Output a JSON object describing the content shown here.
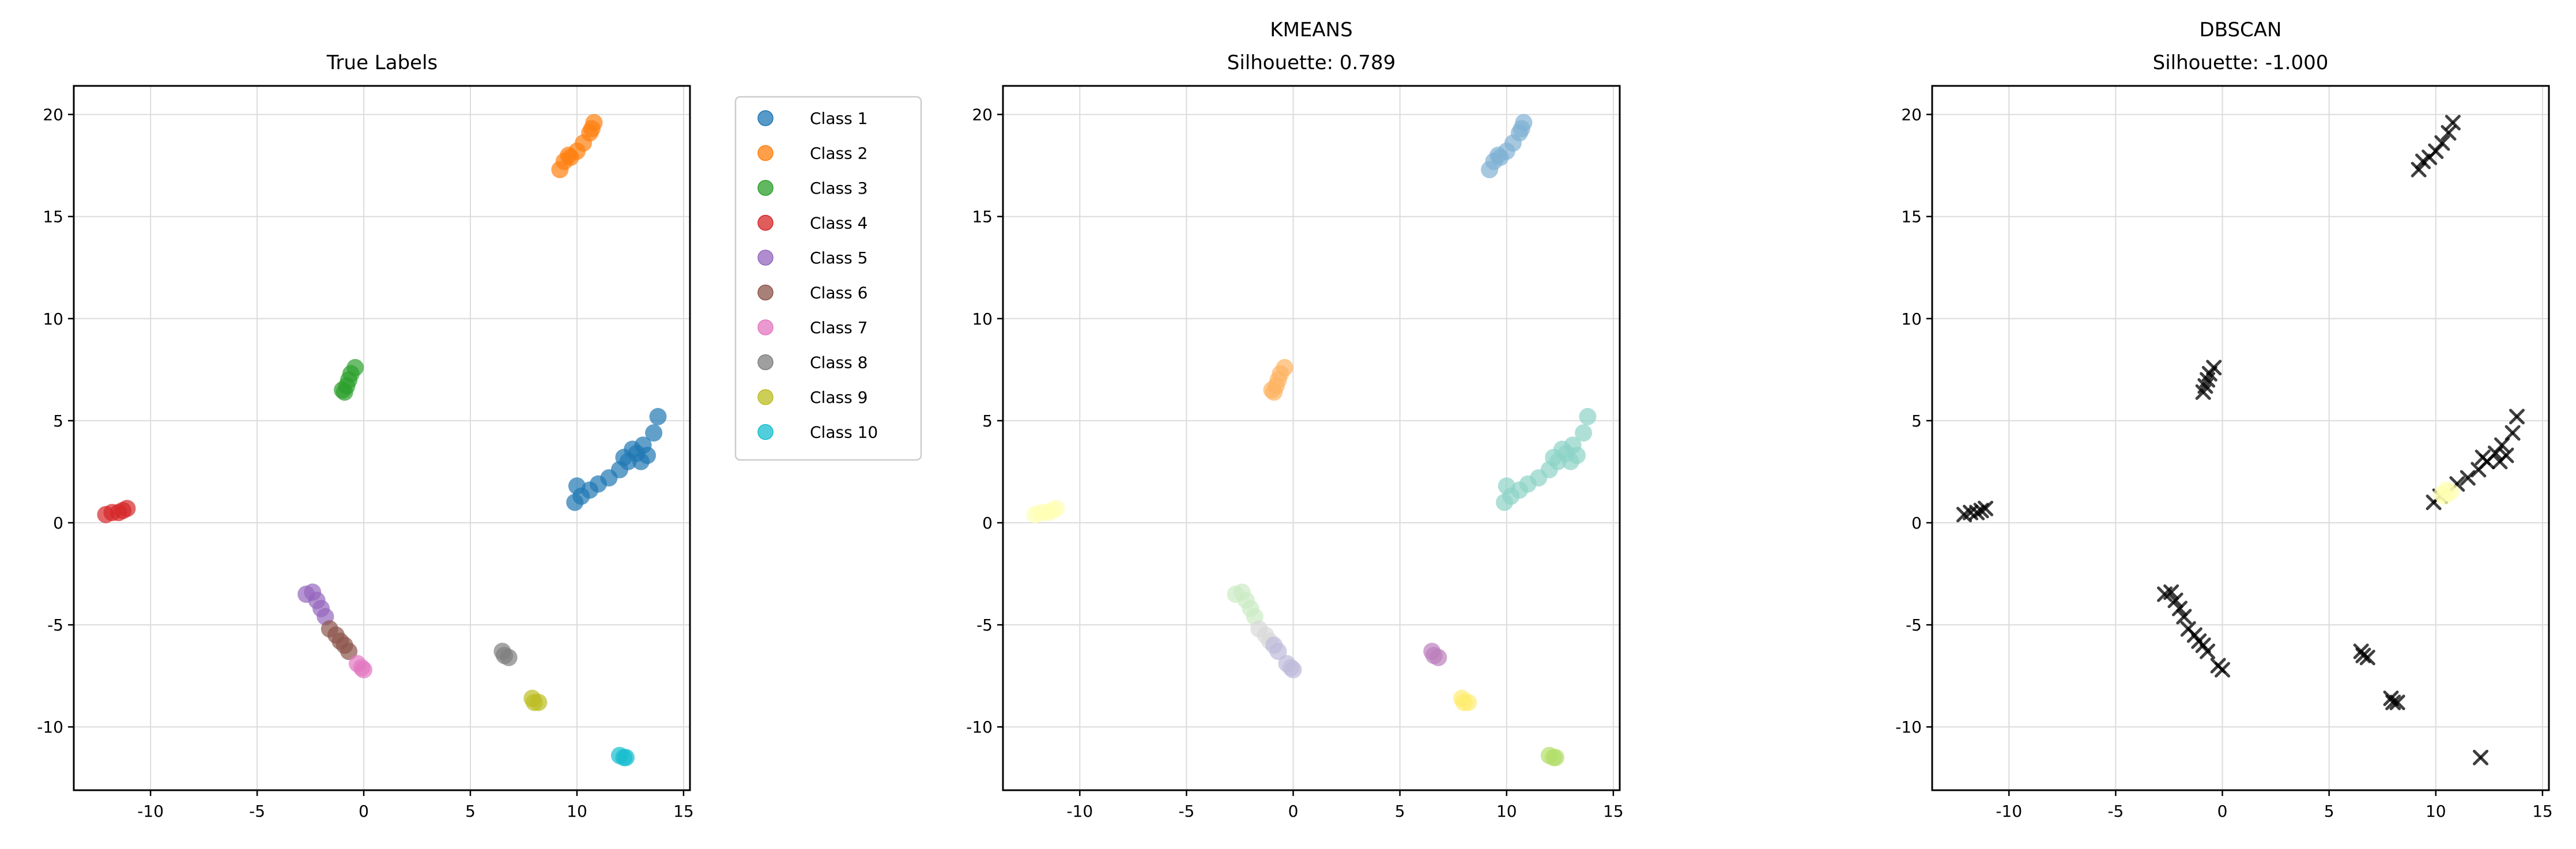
{
  "chart_data": [
    {
      "type": "scatter",
      "title": "True Labels",
      "subtitle": "",
      "xlabel": "",
      "ylabel": "",
      "xlim": [
        -13.6,
        15.3
      ],
      "ylim": [
        -13.1,
        21.4
      ],
      "xticks": [
        -10,
        -5,
        0,
        5,
        10,
        15
      ],
      "yticks": [
        -10,
        -5,
        0,
        5,
        10,
        15,
        20
      ],
      "xtick_labels": [
        "-10",
        "-5",
        "0",
        "5",
        "10",
        "15"
      ],
      "ytick_labels": [
        "-10",
        "-5",
        "0",
        "5",
        "10",
        "15",
        "20"
      ],
      "grid": true,
      "legend": {
        "placement": "outside-right",
        "marker": "circle"
      },
      "series": [
        {
          "name": "Class 1",
          "color": "#1f77b4",
          "points": [
            [
              9.9,
              1.0
            ],
            [
              10.2,
              1.3
            ],
            [
              10.6,
              1.6
            ],
            [
              11.0,
              1.9
            ],
            [
              11.5,
              2.2
            ],
            [
              12.0,
              2.6
            ],
            [
              12.4,
              3.0
            ],
            [
              12.8,
              3.4
            ],
            [
              13.1,
              3.8
            ],
            [
              13.3,
              3.3
            ],
            [
              13.6,
              4.4
            ],
            [
              13.8,
              5.2
            ],
            [
              12.2,
              3.2
            ],
            [
              10.0,
              1.8
            ],
            [
              13.0,
              3.0
            ],
            [
              12.6,
              3.6
            ]
          ]
        },
        {
          "name": "Class 2",
          "color": "#ff7f0e",
          "points": [
            [
              9.2,
              17.3
            ],
            [
              9.4,
              17.7
            ],
            [
              9.7,
              17.9
            ],
            [
              10.0,
              18.2
            ],
            [
              10.3,
              18.6
            ],
            [
              10.6,
              19.1
            ],
            [
              10.8,
              19.6
            ],
            [
              10.7,
              19.3
            ],
            [
              9.6,
              18.0
            ]
          ]
        },
        {
          "name": "Class 3",
          "color": "#2ca02c",
          "points": [
            [
              -0.9,
              6.4
            ],
            [
              -0.8,
              6.7
            ],
            [
              -0.7,
              7.0
            ],
            [
              -0.6,
              7.3
            ],
            [
              -0.4,
              7.6
            ],
            [
              -1.0,
              6.5
            ]
          ]
        },
        {
          "name": "Class 4",
          "color": "#d62728",
          "points": [
            [
              -12.1,
              0.4
            ],
            [
              -11.8,
              0.5
            ],
            [
              -11.5,
              0.5
            ],
            [
              -11.3,
              0.6
            ],
            [
              -11.1,
              0.7
            ]
          ]
        },
        {
          "name": "Class 5",
          "color": "#9467bd",
          "points": [
            [
              -2.7,
              -3.5
            ],
            [
              -2.4,
              -3.4
            ],
            [
              -2.2,
              -3.8
            ],
            [
              -2.0,
              -4.2
            ],
            [
              -1.8,
              -4.6
            ]
          ]
        },
        {
          "name": "Class 6",
          "color": "#8c564b",
          "points": [
            [
              -1.6,
              -5.2
            ],
            [
              -1.3,
              -5.5
            ],
            [
              -1.1,
              -5.8
            ],
            [
              -0.9,
              -6.0
            ],
            [
              -0.7,
              -6.3
            ]
          ]
        },
        {
          "name": "Class 7",
          "color": "#e377c2",
          "points": [
            [
              -0.3,
              -6.9
            ],
            [
              -0.1,
              -7.1
            ],
            [
              0.0,
              -7.2
            ]
          ]
        },
        {
          "name": "Class 8",
          "color": "#7f7f7f",
          "points": [
            [
              6.5,
              -6.3
            ],
            [
              6.6,
              -6.5
            ],
            [
              6.8,
              -6.6
            ]
          ]
        },
        {
          "name": "Class 9",
          "color": "#bcbd22",
          "points": [
            [
              7.9,
              -8.6
            ],
            [
              8.0,
              -8.8
            ],
            [
              8.2,
              -8.8
            ]
          ]
        },
        {
          "name": "Class 10",
          "color": "#17becf",
          "points": [
            [
              12.0,
              -11.4
            ],
            [
              12.2,
              -11.5
            ],
            [
              12.3,
              -11.5
            ]
          ]
        }
      ]
    },
    {
      "type": "scatter",
      "title": "KMEANS",
      "subtitle": "Silhouette: 0.789",
      "xlabel": "",
      "ylabel": "",
      "xlim": [
        -13.6,
        15.3
      ],
      "ylim": [
        -13.1,
        21.4
      ],
      "xticks": [
        -10,
        -5,
        0,
        5,
        10,
        15
      ],
      "yticks": [
        -10,
        -5,
        0,
        5,
        10,
        15,
        20
      ],
      "xtick_labels": [
        "-10",
        "-5",
        "0",
        "5",
        "10",
        "15"
      ],
      "ytick_labels": [
        "-10",
        "-5",
        "0",
        "5",
        "10",
        "15",
        "20"
      ],
      "grid": true,
      "legend": null,
      "series": [
        {
          "color": "#8dd3c7",
          "points": [
            [
              9.9,
              1.0
            ],
            [
              10.2,
              1.3
            ],
            [
              10.6,
              1.6
            ],
            [
              11.0,
              1.9
            ],
            [
              11.5,
              2.2
            ],
            [
              12.0,
              2.6
            ],
            [
              12.4,
              3.0
            ],
            [
              12.8,
              3.4
            ],
            [
              13.1,
              3.8
            ],
            [
              13.3,
              3.3
            ],
            [
              13.6,
              4.4
            ],
            [
              13.8,
              5.2
            ],
            [
              12.2,
              3.2
            ],
            [
              10.0,
              1.8
            ],
            [
              13.0,
              3.0
            ],
            [
              12.6,
              3.6
            ]
          ]
        },
        {
          "color": "#80b1d3",
          "points": [
            [
              9.2,
              17.3
            ],
            [
              9.4,
              17.7
            ],
            [
              9.7,
              17.9
            ],
            [
              10.0,
              18.2
            ],
            [
              10.3,
              18.6
            ],
            [
              10.6,
              19.1
            ],
            [
              10.8,
              19.6
            ],
            [
              10.7,
              19.3
            ],
            [
              9.6,
              18.0
            ]
          ]
        },
        {
          "color": "#fdb462",
          "points": [
            [
              -0.9,
              6.4
            ],
            [
              -0.8,
              6.7
            ],
            [
              -0.7,
              7.0
            ],
            [
              -0.6,
              7.3
            ],
            [
              -0.4,
              7.6
            ],
            [
              -1.0,
              6.5
            ]
          ]
        },
        {
          "color": "#ffffb3",
          "points": [
            [
              -12.1,
              0.4
            ],
            [
              -11.8,
              0.5
            ],
            [
              -11.5,
              0.5
            ],
            [
              -11.3,
              0.6
            ],
            [
              -11.1,
              0.7
            ]
          ]
        },
        {
          "color": "#ccebc5",
          "points": [
            [
              -2.7,
              -3.5
            ],
            [
              -2.4,
              -3.4
            ],
            [
              -2.2,
              -3.8
            ],
            [
              -2.0,
              -4.2
            ],
            [
              -1.8,
              -4.6
            ]
          ]
        },
        {
          "color": "#d9d9d9",
          "points": [
            [
              -1.6,
              -5.2
            ],
            [
              -1.3,
              -5.5
            ],
            [
              -1.1,
              -5.8
            ]
          ]
        },
        {
          "color": "#bebada",
          "points": [
            [
              -0.9,
              -6.0
            ],
            [
              -0.7,
              -6.3
            ],
            [
              -0.3,
              -6.9
            ],
            [
              -0.1,
              -7.1
            ],
            [
              0.0,
              -7.2
            ]
          ]
        },
        {
          "color": "#bc80bd",
          "points": [
            [
              6.5,
              -6.3
            ],
            [
              6.6,
              -6.5
            ],
            [
              6.8,
              -6.6
            ]
          ]
        },
        {
          "color": "#ffed6f",
          "points": [
            [
              7.9,
              -8.6
            ],
            [
              8.0,
              -8.8
            ],
            [
              8.2,
              -8.8
            ]
          ]
        },
        {
          "color": "#b3de69",
          "points": [
            [
              12.0,
              -11.4
            ],
            [
              12.2,
              -11.5
            ],
            [
              12.3,
              -11.5
            ]
          ]
        }
      ]
    },
    {
      "type": "scatter",
      "title": "DBSCAN",
      "subtitle": "Silhouette: -1.000",
      "xlabel": "",
      "ylabel": "",
      "xlim": [
        -13.6,
        15.3
      ],
      "ylim": [
        -13.1,
        21.4
      ],
      "xticks": [
        -10,
        -5,
        0,
        5,
        10,
        15
      ],
      "yticks": [
        -10,
        -5,
        0,
        5,
        10,
        15,
        20
      ],
      "xtick_labels": [
        "-10",
        "-5",
        "0",
        "5",
        "10",
        "15"
      ],
      "ytick_labels": [
        "-10",
        "-5",
        "0",
        "5",
        "10",
        "15",
        "20"
      ],
      "grid": true,
      "legend": null,
      "series": [
        {
          "marker": "x",
          "color": "#000000",
          "points": [
            [
              9.9,
              1.0
            ],
            [
              10.2,
              1.3
            ],
            [
              11.0,
              1.9
            ],
            [
              11.5,
              2.2
            ],
            [
              12.0,
              2.6
            ],
            [
              12.4,
              3.0
            ],
            [
              12.8,
              3.4
            ],
            [
              13.1,
              3.8
            ],
            [
              13.3,
              3.3
            ],
            [
              13.6,
              4.4
            ],
            [
              13.8,
              5.2
            ],
            [
              12.2,
              3.2
            ],
            [
              13.0,
              3.0
            ],
            [
              9.2,
              17.3
            ],
            [
              9.4,
              17.7
            ],
            [
              9.7,
              17.9
            ],
            [
              10.0,
              18.2
            ],
            [
              10.3,
              18.6
            ],
            [
              10.6,
              19.1
            ],
            [
              10.8,
              19.6
            ],
            [
              -0.9,
              6.4
            ],
            [
              -0.8,
              6.7
            ],
            [
              -0.7,
              7.0
            ],
            [
              -0.6,
              7.3
            ],
            [
              -0.4,
              7.6
            ],
            [
              -12.1,
              0.4
            ],
            [
              -11.8,
              0.5
            ],
            [
              -11.5,
              0.5
            ],
            [
              -11.3,
              0.6
            ],
            [
              -11.1,
              0.7
            ],
            [
              -2.7,
              -3.5
            ],
            [
              -2.4,
              -3.4
            ],
            [
              -2.2,
              -3.8
            ],
            [
              -2.0,
              -4.2
            ],
            [
              -1.8,
              -4.6
            ],
            [
              -1.6,
              -5.2
            ],
            [
              -1.3,
              -5.5
            ],
            [
              -1.1,
              -5.8
            ],
            [
              -0.9,
              -6.0
            ],
            [
              -0.7,
              -6.3
            ],
            [
              -0.2,
              -7.0
            ],
            [
              0.0,
              -7.2
            ],
            [
              6.5,
              -6.3
            ],
            [
              6.6,
              -6.5
            ],
            [
              6.8,
              -6.6
            ],
            [
              7.9,
              -8.6
            ],
            [
              8.0,
              -8.8
            ],
            [
              8.2,
              -8.8
            ],
            [
              12.1,
              -11.5
            ]
          ]
        },
        {
          "marker": "circle",
          "color": "#ffffb3",
          "points": [
            [
              10.3,
              1.4
            ],
            [
              10.5,
              1.6
            ],
            [
              10.7,
              1.5
            ],
            [
              10.4,
              1.3
            ]
          ]
        }
      ]
    }
  ]
}
